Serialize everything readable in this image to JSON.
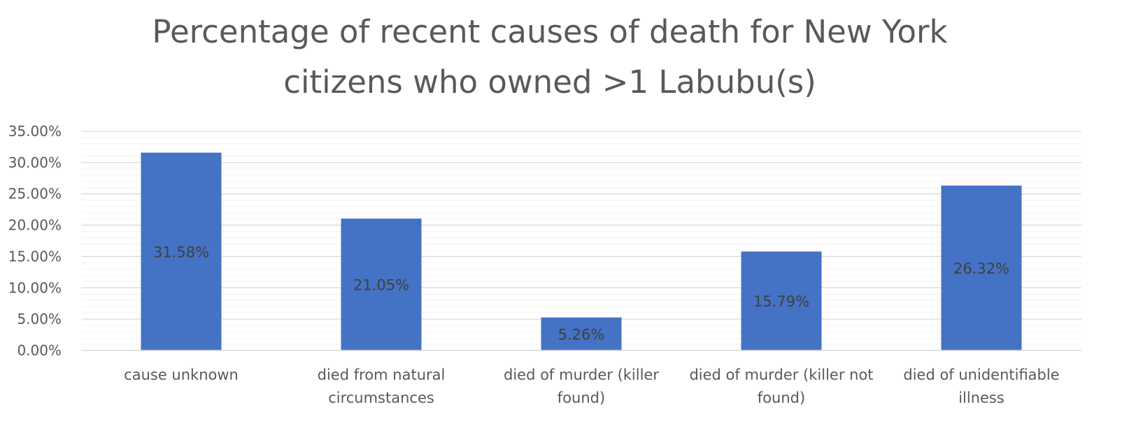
{
  "chart_data": {
    "type": "bar",
    "title": "Percentage of recent causes of death for New York citizens who owned >1 Labubu(s)",
    "title_lines": [
      "Percentage of recent causes of death for New York",
      "citizens who owned >1 Labubu(s)"
    ],
    "categories": [
      "cause unknown",
      "died from natural circumstances",
      "died of murder (killer found)",
      "died of murder (killer not found)",
      "died of unidentifiable illness"
    ],
    "category_lines": [
      [
        "cause unknown"
      ],
      [
        "died from natural",
        "circumstances"
      ],
      [
        "died of murder (killer",
        "found)"
      ],
      [
        "died of murder (killer not",
        "found)"
      ],
      [
        "died of unidentifiable",
        "illness"
      ]
    ],
    "values": [
      31.58,
      21.05,
      5.26,
      15.79,
      26.32
    ],
    "data_labels": [
      "31.58%",
      "21.05%",
      "5.26%",
      "15.79%",
      "26.32%"
    ],
    "ylim": [
      0,
      35
    ],
    "yticks": [
      0,
      5,
      10,
      15,
      20,
      25,
      30,
      35
    ],
    "ytick_labels": [
      "0.00%",
      "5.00%",
      "10.00%",
      "15.00%",
      "20.00%",
      "25.00%",
      "30.00%",
      "35.00%"
    ],
    "xlabel": "",
    "ylabel": "",
    "grid": true,
    "minor_grid": true,
    "legend": "none",
    "colors": {
      "bar": "#4472C4",
      "major_grid": "#D9D9D9",
      "minor_grid": "#F2F2F2",
      "axis": "#D9D9D9"
    }
  }
}
